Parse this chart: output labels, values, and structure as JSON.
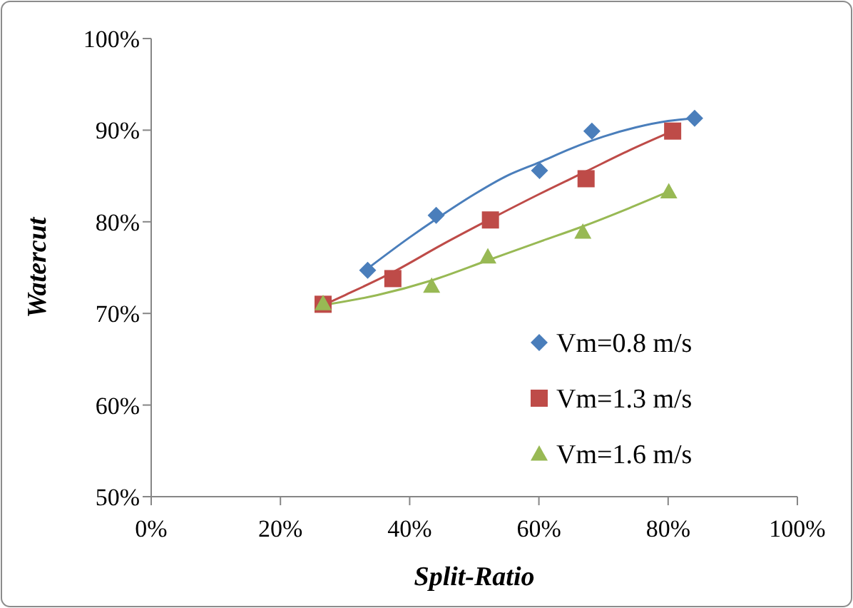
{
  "chart_data": {
    "type": "scatter",
    "xlabel": "Split-Ratio",
    "ylabel": "Watercut",
    "xlim": [
      0,
      100
    ],
    "ylim": [
      50,
      100
    ],
    "xticks": [
      {
        "value": 0,
        "label": "0%"
      },
      {
        "value": 20,
        "label": "20%"
      },
      {
        "value": 40,
        "label": "40%"
      },
      {
        "value": 60,
        "label": "60%"
      },
      {
        "value": 80,
        "label": "80%"
      },
      {
        "value": 100,
        "label": "100%"
      }
    ],
    "yticks": [
      {
        "value": 50,
        "label": "50%"
      },
      {
        "value": 60,
        "label": "60%"
      },
      {
        "value": 70,
        "label": "70%"
      },
      {
        "value": 80,
        "label": "80%"
      },
      {
        "value": 90,
        "label": "90%"
      },
      {
        "value": 100,
        "label": "100%"
      }
    ],
    "grid": false,
    "legend": "bottom right",
    "series": [
      {
        "name": "Vm=0.8 m/s",
        "marker": "diamond",
        "color": "#4a7ebb",
        "x": [
          33.5,
          44.1,
          60.1,
          68.2,
          84.1
        ],
        "values": [
          74.7,
          80.7,
          85.6,
          89.9,
          91.3
        ]
      },
      {
        "name": "Vm=1.3 m/s",
        "marker": "square",
        "color": "#be4b48",
        "x": [
          26.6,
          37.4,
          52.5,
          67.3,
          80.7
        ],
        "values": [
          71.0,
          73.8,
          80.2,
          84.7,
          89.9
        ]
      },
      {
        "name": "Vm=1.6 m/s",
        "marker": "triangle",
        "color": "#98b954",
        "x": [
          26.6,
          43.4,
          52.1,
          66.8,
          80.1
        ],
        "values": [
          71.1,
          73.0,
          76.2,
          78.9,
          83.3
        ]
      },
      {
        "type": "line",
        "marker": "none",
        "color": "#4a7ebb",
        "x": [
          33.5,
          40,
          44.1,
          50,
          55,
          60.1,
          65,
          70,
          75,
          80,
          84.1
        ],
        "values": [
          74.9,
          78.3,
          80.3,
          83.0,
          85.0,
          86.5,
          88.0,
          89.3,
          90.3,
          91.0,
          91.3
        ]
      },
      {
        "type": "line",
        "marker": "none",
        "color": "#be4b48",
        "x": [
          26.6,
          30,
          37.4,
          45,
          52.5,
          60,
          67.3,
          74,
          80.7
        ],
        "values": [
          70.9,
          72.0,
          74.5,
          77.5,
          80.3,
          83.0,
          85.5,
          87.8,
          89.9
        ]
      },
      {
        "type": "line",
        "marker": "none",
        "color": "#98b954",
        "x": [
          26.6,
          35,
          43.4,
          52.1,
          60,
          66.8,
          74,
          80.1
        ],
        "values": [
          70.9,
          72.0,
          73.6,
          75.8,
          77.8,
          79.5,
          81.5,
          83.3
        ]
      }
    ]
  }
}
